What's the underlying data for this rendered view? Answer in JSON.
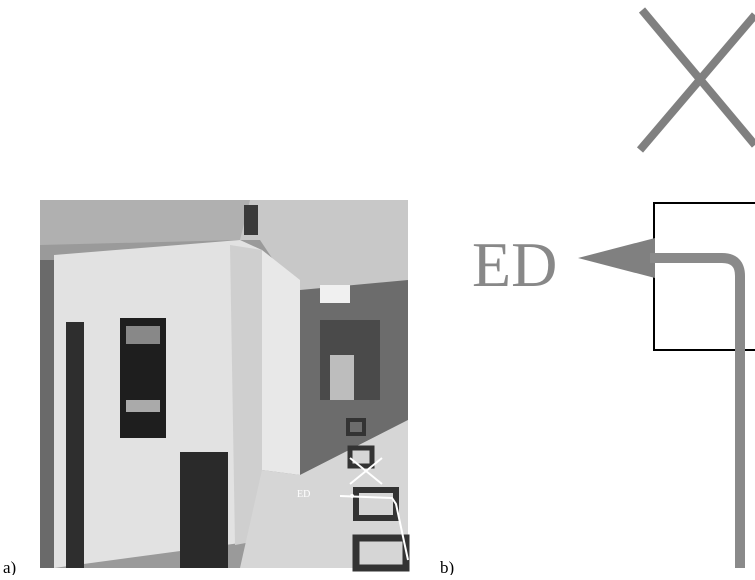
{
  "panels": [
    {
      "label": "a)",
      "annotation": "ED"
    },
    {
      "label": "b)",
      "annotation": "ED"
    }
  ]
}
